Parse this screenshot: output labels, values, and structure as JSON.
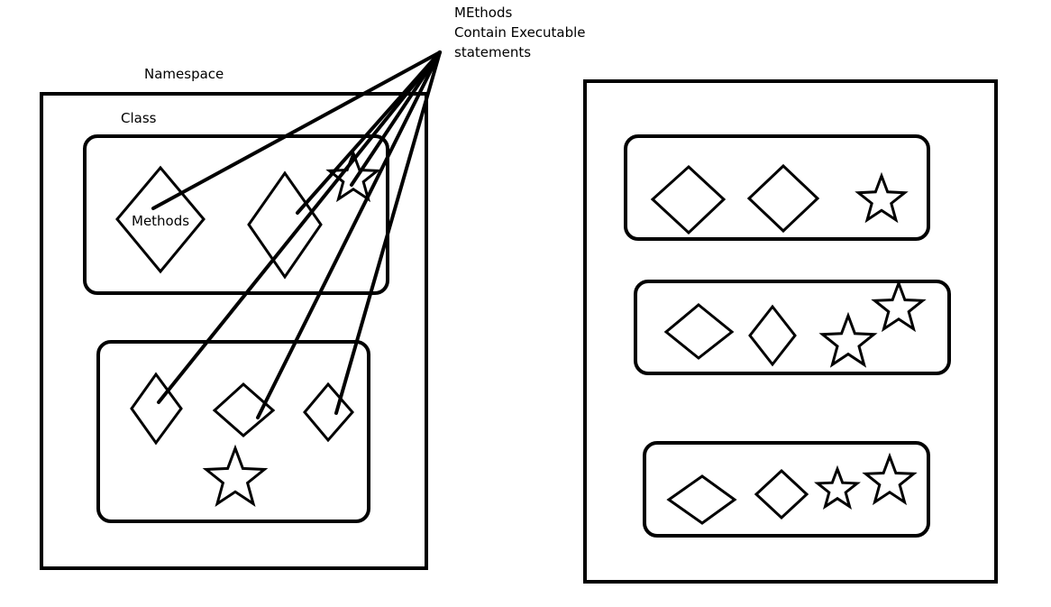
{
  "labels": {
    "methods_note_line1": "MEthods",
    "methods_note_line2": "Contain Executable",
    "methods_note_line3": "statements",
    "namespace": "Namespace",
    "class": "Class",
    "methods": "Methods"
  },
  "colors": {
    "ink": "#000000",
    "background": "#ffffff"
  }
}
